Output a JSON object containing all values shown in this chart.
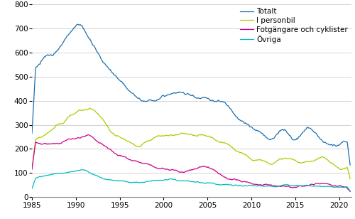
{
  "xlim": [
    1985.0,
    2021.4
  ],
  "ylim": [
    0,
    800
  ],
  "yticks": [
    0,
    100,
    200,
    300,
    400,
    500,
    600,
    700,
    800
  ],
  "xticks": [
    1985,
    1990,
    1995,
    2000,
    2005,
    2010,
    2015,
    2020
  ],
  "colors": {
    "totalt": "#1a6faf",
    "personbil": "#aacc00",
    "fotgangare": "#cc0088",
    "ovriga": "#00bbbb"
  },
  "legend_labels": [
    "Totalt",
    "I personbil",
    "Fotgängare och cyklister",
    "Övriga"
  ],
  "background_color": "#ffffff",
  "grid_color": "#cccccc",
  "figsize": [
    5.0,
    3.08
  ],
  "dpi": 100
}
